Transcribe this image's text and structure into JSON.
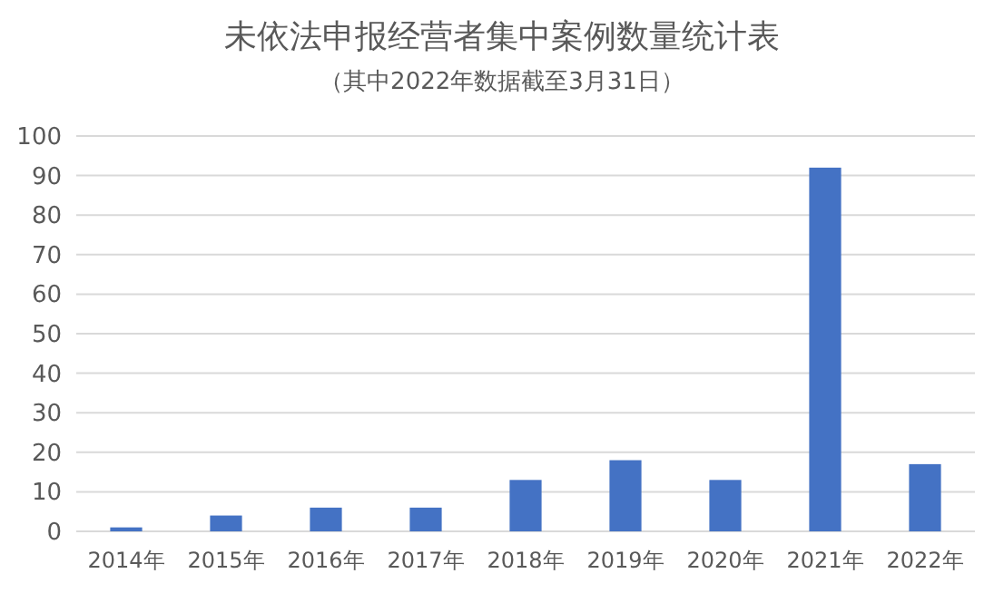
{
  "chart_data": {
    "type": "bar",
    "title": "未依法申报经营者集中案例数量统计表",
    "subtitle": "（其中2022年数据截至3月31日）",
    "categories": [
      "2014年",
      "2015年",
      "2016年",
      "2017年",
      "2018年",
      "2019年",
      "2020年",
      "2021年",
      "2022年"
    ],
    "values": [
      1,
      4,
      6,
      6,
      13,
      18,
      13,
      92,
      17
    ],
    "color": "#4472c4",
    "ylim": [
      0,
      100
    ],
    "yticks": [
      0,
      10,
      20,
      30,
      40,
      50,
      60,
      70,
      80,
      90,
      100
    ],
    "grid": "y"
  }
}
